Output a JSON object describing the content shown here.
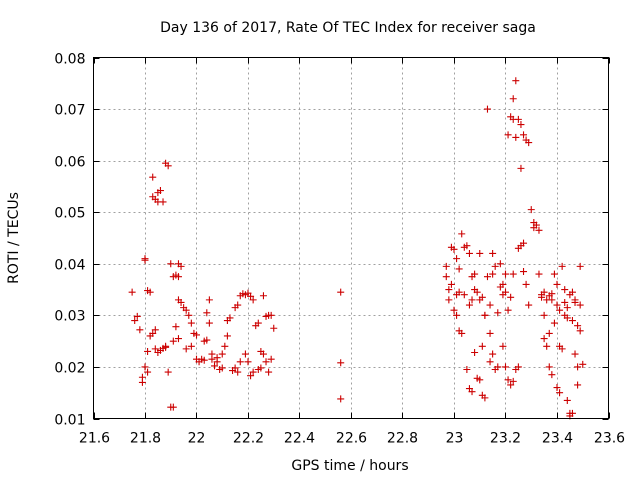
{
  "chart_data": {
    "type": "scatter",
    "title": "Day 136 of 2017, Rate Of TEC Index for receiver saga",
    "xlabel": "GPS time / hours",
    "ylabel": "ROTI / TECUs",
    "xlim": [
      21.6,
      23.6
    ],
    "ylim": [
      0.01,
      0.08
    ],
    "xticks": [
      "21.6",
      "21.8",
      "22",
      "22.2",
      "22.4",
      "22.6",
      "22.8",
      "23",
      "23.2",
      "23.4",
      "23.6"
    ],
    "yticks": [
      "0.01",
      "0.02",
      "0.03",
      "0.04",
      "0.05",
      "0.06",
      "0.07",
      "0.08"
    ],
    "grid": true,
    "marker": "+",
    "color": "#cc0000",
    "series": [
      {
        "name": "ROTI",
        "points": [
          [
            21.75,
            0.0345
          ],
          [
            21.76,
            0.029
          ],
          [
            21.77,
            0.0298
          ],
          [
            21.78,
            0.0272
          ],
          [
            21.79,
            0.017
          ],
          [
            21.79,
            0.018
          ],
          [
            21.8,
            0.041
          ],
          [
            21.8,
            0.0407
          ],
          [
            21.81,
            0.0348
          ],
          [
            21.82,
            0.0345
          ],
          [
            21.81,
            0.023
          ],
          [
            21.82,
            0.026
          ],
          [
            21.83,
            0.0265
          ],
          [
            21.84,
            0.0272
          ],
          [
            21.84,
            0.0235
          ],
          [
            21.85,
            0.0228
          ],
          [
            21.86,
            0.0232
          ],
          [
            21.87,
            0.0236
          ],
          [
            21.88,
            0.024
          ],
          [
            21.88,
            0.0238
          ],
          [
            21.8,
            0.02
          ],
          [
            21.81,
            0.019
          ],
          [
            21.83,
            0.0568
          ],
          [
            21.83,
            0.053
          ],
          [
            21.84,
            0.0525
          ],
          [
            21.85,
            0.052
          ],
          [
            21.85,
            0.0538
          ],
          [
            21.86,
            0.0542
          ],
          [
            21.87,
            0.052
          ],
          [
            21.88,
            0.0595
          ],
          [
            21.89,
            0.059
          ],
          [
            21.89,
            0.019
          ],
          [
            21.9,
            0.0122
          ],
          [
            21.91,
            0.0122
          ],
          [
            21.9,
            0.04
          ],
          [
            21.91,
            0.0375
          ],
          [
            21.92,
            0.0378
          ],
          [
            21.93,
            0.0375
          ],
          [
            21.93,
            0.04
          ],
          [
            21.94,
            0.0395
          ],
          [
            21.93,
            0.033
          ],
          [
            21.94,
            0.0325
          ],
          [
            21.95,
            0.0315
          ],
          [
            21.96,
            0.031
          ],
          [
            21.97,
            0.03
          ],
          [
            21.92,
            0.0278
          ],
          [
            21.91,
            0.025
          ],
          [
            21.93,
            0.0255
          ],
          [
            21.96,
            0.0235
          ],
          [
            21.98,
            0.024
          ],
          [
            21.98,
            0.0285
          ],
          [
            21.99,
            0.0265
          ],
          [
            22.0,
            0.0262
          ],
          [
            22.0,
            0.0215
          ],
          [
            22.01,
            0.021
          ],
          [
            22.02,
            0.0215
          ],
          [
            22.03,
            0.0213
          ],
          [
            22.03,
            0.025
          ],
          [
            22.04,
            0.0252
          ],
          [
            22.04,
            0.0305
          ],
          [
            22.05,
            0.033
          ],
          [
            22.05,
            0.0285
          ],
          [
            22.06,
            0.0215
          ],
          [
            22.06,
            0.0225
          ],
          [
            22.07,
            0.0202
          ],
          [
            22.08,
            0.021
          ],
          [
            22.08,
            0.0218
          ],
          [
            22.09,
            0.0195
          ],
          [
            22.1,
            0.0198
          ],
          [
            22.1,
            0.0225
          ],
          [
            22.11,
            0.024
          ],
          [
            22.12,
            0.026
          ],
          [
            22.12,
            0.029
          ],
          [
            22.13,
            0.0295
          ],
          [
            22.14,
            0.0193
          ],
          [
            22.15,
            0.0198
          ],
          [
            22.15,
            0.0315
          ],
          [
            22.16,
            0.032
          ],
          [
            22.16,
            0.019
          ],
          [
            22.17,
            0.021
          ],
          [
            22.17,
            0.0338
          ],
          [
            22.18,
            0.0342
          ],
          [
            22.19,
            0.034
          ],
          [
            22.2,
            0.0343
          ],
          [
            22.21,
            0.0337
          ],
          [
            22.19,
            0.0225
          ],
          [
            22.2,
            0.021
          ],
          [
            22.21,
            0.0183
          ],
          [
            22.22,
            0.019
          ],
          [
            22.22,
            0.033
          ],
          [
            22.23,
            0.028
          ],
          [
            22.24,
            0.0285
          ],
          [
            22.24,
            0.0195
          ],
          [
            22.25,
            0.0198
          ],
          [
            22.26,
            0.0338
          ],
          [
            22.25,
            0.023
          ],
          [
            22.26,
            0.0225
          ],
          [
            22.27,
            0.0298
          ],
          [
            22.27,
            0.021
          ],
          [
            22.28,
            0.03
          ],
          [
            22.29,
            0.03
          ],
          [
            22.28,
            0.019
          ],
          [
            22.29,
            0.0215
          ],
          [
            22.3,
            0.0275
          ],
          [
            22.56,
            0.0345
          ],
          [
            22.56,
            0.0208
          ],
          [
            22.56,
            0.0138
          ],
          [
            22.97,
            0.0395
          ],
          [
            22.97,
            0.0375
          ],
          [
            22.98,
            0.035
          ],
          [
            22.98,
            0.033
          ],
          [
            22.99,
            0.0432
          ],
          [
            23.0,
            0.0428
          ],
          [
            23.0,
            0.031
          ],
          [
            23.01,
            0.03
          ],
          [
            23.01,
            0.034
          ],
          [
            23.02,
            0.039
          ],
          [
            23.02,
            0.027
          ],
          [
            23.03,
            0.0265
          ],
          [
            23.03,
            0.0458
          ],
          [
            23.04,
            0.0432
          ],
          [
            23.05,
            0.0435
          ],
          [
            23.05,
            0.0195
          ],
          [
            23.06,
            0.0158
          ],
          [
            23.07,
            0.0152
          ],
          [
            23.06,
            0.032
          ],
          [
            23.07,
            0.033
          ],
          [
            23.07,
            0.0375
          ],
          [
            23.08,
            0.038
          ],
          [
            23.08,
            0.0228
          ],
          [
            23.09,
            0.0178
          ],
          [
            23.1,
            0.0175
          ],
          [
            23.1,
            0.042
          ],
          [
            23.11,
            0.024
          ],
          [
            23.11,
            0.0145
          ],
          [
            23.12,
            0.014
          ],
          [
            23.12,
            0.03
          ],
          [
            23.13,
            0.07
          ],
          [
            23.13,
            0.0375
          ],
          [
            23.14,
            0.032
          ],
          [
            23.14,
            0.0265
          ],
          [
            23.15,
            0.038
          ],
          [
            23.15,
            0.042
          ],
          [
            23.16,
            0.0395
          ],
          [
            23.16,
            0.0195
          ],
          [
            23.17,
            0.02
          ],
          [
            23.17,
            0.0305
          ],
          [
            23.18,
            0.0355
          ],
          [
            23.19,
            0.036
          ],
          [
            23.19,
            0.024
          ],
          [
            23.2,
            0.038
          ],
          [
            23.2,
            0.02
          ],
          [
            23.21,
            0.0175
          ],
          [
            23.21,
            0.065
          ],
          [
            23.22,
            0.0685
          ],
          [
            23.23,
            0.068
          ],
          [
            23.23,
            0.072
          ],
          [
            23.24,
            0.0755
          ],
          [
            23.24,
            0.0645
          ],
          [
            23.25,
            0.068
          ],
          [
            23.26,
            0.067
          ],
          [
            23.26,
            0.0585
          ],
          [
            23.27,
            0.065
          ],
          [
            23.28,
            0.064
          ],
          [
            23.29,
            0.0635
          ],
          [
            23.22,
            0.0165
          ],
          [
            23.23,
            0.0172
          ],
          [
            23.24,
            0.0195
          ],
          [
            23.25,
            0.02
          ],
          [
            23.25,
            0.043
          ],
          [
            23.26,
            0.0435
          ],
          [
            23.27,
            0.044
          ],
          [
            23.27,
            0.0385
          ],
          [
            23.28,
            0.036
          ],
          [
            23.29,
            0.032
          ],
          [
            23.3,
            0.0505
          ],
          [
            23.31,
            0.048
          ],
          [
            23.31,
            0.047
          ],
          [
            23.32,
            0.0475
          ],
          [
            23.33,
            0.0465
          ],
          [
            23.33,
            0.038
          ],
          [
            23.34,
            0.0335
          ],
          [
            23.35,
            0.03
          ],
          [
            23.35,
            0.0255
          ],
          [
            23.36,
            0.024
          ],
          [
            23.37,
            0.0265
          ],
          [
            23.37,
            0.02
          ],
          [
            23.38,
            0.0185
          ],
          [
            23.38,
            0.033
          ],
          [
            23.39,
            0.0285
          ],
          [
            23.39,
            0.038
          ],
          [
            23.4,
            0.036
          ],
          [
            23.4,
            0.016
          ],
          [
            23.41,
            0.015
          ],
          [
            23.41,
            0.024
          ],
          [
            23.42,
            0.0235
          ],
          [
            23.42,
            0.0395
          ],
          [
            23.43,
            0.035
          ],
          [
            23.43,
            0.0325
          ],
          [
            23.44,
            0.0315
          ],
          [
            23.44,
            0.0135
          ],
          [
            23.45,
            0.011
          ],
          [
            23.45,
            0.0105
          ],
          [
            23.46,
            0.011
          ],
          [
            23.46,
            0.029
          ],
          [
            23.47,
            0.033
          ],
          [
            23.47,
            0.0225
          ],
          [
            23.48,
            0.02
          ],
          [
            23.48,
            0.0165
          ],
          [
            23.48,
            0.028
          ],
          [
            23.49,
            0.032
          ],
          [
            23.49,
            0.027
          ],
          [
            23.49,
            0.0395
          ],
          [
            23.5,
            0.0205
          ],
          [
            23.34,
            0.034
          ],
          [
            23.35,
            0.0345
          ],
          [
            23.36,
            0.033
          ],
          [
            23.37,
            0.0338
          ],
          [
            23.38,
            0.0342
          ],
          [
            23.4,
            0.032
          ],
          [
            23.41,
            0.031
          ],
          [
            23.43,
            0.03
          ],
          [
            23.44,
            0.0295
          ],
          [
            23.45,
            0.034
          ],
          [
            23.46,
            0.0345
          ],
          [
            23.47,
            0.0325
          ],
          [
            23.18,
            0.04
          ],
          [
            23.19,
            0.034
          ],
          [
            23.2,
            0.0345
          ],
          [
            23.21,
            0.031
          ],
          [
            23.22,
            0.0335
          ],
          [
            23.23,
            0.038
          ],
          [
            23.1,
            0.033
          ],
          [
            23.11,
            0.0335
          ],
          [
            23.12,
            0.03
          ],
          [
            23.09,
            0.0345
          ],
          [
            23.08,
            0.035
          ],
          [
            23.04,
            0.034
          ],
          [
            23.02,
            0.0345
          ],
          [
            22.99,
            0.036
          ],
          [
            23.01,
            0.041
          ],
          [
            23.06,
            0.042
          ],
          [
            23.14,
            0.021
          ],
          [
            23.15,
            0.0225
          ]
        ]
      }
    ]
  }
}
